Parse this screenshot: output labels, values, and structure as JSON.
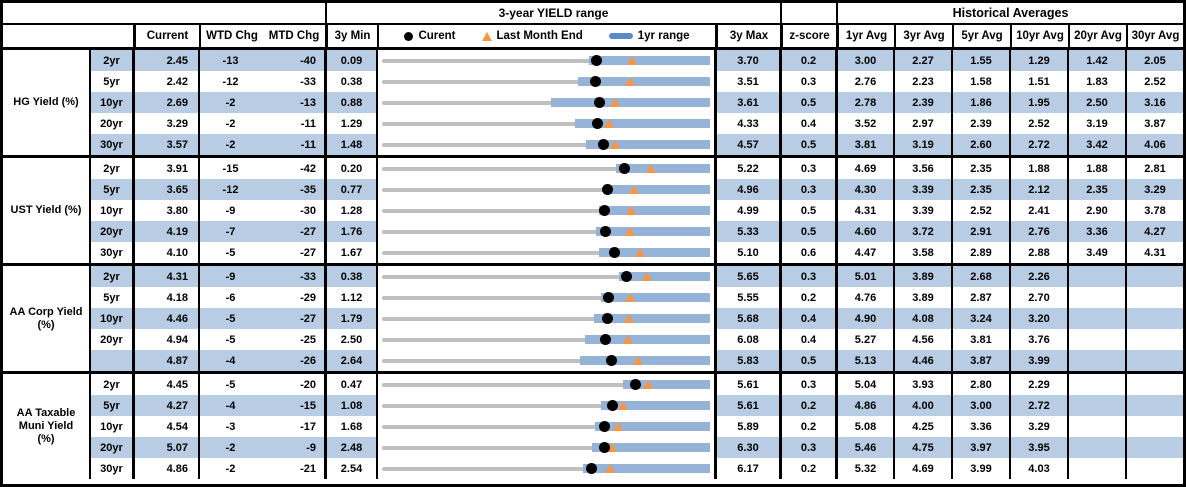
{
  "header": {
    "chart_group_title": "3-year YIELD range",
    "historical_group_title": "Historical Averages",
    "col_current": "Current",
    "col_wtd_chg": "WTD Chg",
    "col_mtd_chg": "MTD Chg",
    "col_3y_min": "3y Min",
    "col_3y_max": "3y Max",
    "col_zscore": "z-score",
    "avg_cols": [
      "1yr Avg",
      "3yr Avg",
      "5yr Avg",
      "10yr Avg",
      "20yr Avg",
      "30yr Avg"
    ],
    "legend": {
      "current": "Curent",
      "last_month_end": "Last Month End",
      "range": "1yr range"
    }
  },
  "colors": {
    "row_shade": "#B8CCE4",
    "range_bar_blue": "#95B3D7",
    "legend_swatch_blue": "#5B8AC6",
    "track_gray": "#BFBFBF",
    "marker_orange": "#F79646",
    "current_dot": "#000000",
    "border": "#000000"
  },
  "chart_data": {
    "type": "table",
    "subtype": "range-bullet-rows",
    "title": "3-year YIELD range",
    "notes": "Each row: gray track spans 3y Min..3y Max; blue bar = 1yr range (estimated low, high = 3y max); black dot = current yield; orange triangle = last month end (current - MTD chg in bps).",
    "value_columns": [
      "Current",
      "WTD Chg",
      "MTD Chg",
      "3y Min",
      "3y Max",
      "z-score",
      "1yr Avg",
      "3yr Avg",
      "5yr Avg",
      "10yr Avg",
      "20yr Avg",
      "30yr Avg"
    ],
    "sections": [
      {
        "label": "HG Yield (%)",
        "label_lines": [
          "HG Yield (%)"
        ],
        "rows": [
          {
            "tenor": "2yr",
            "current": 2.45,
            "wtd": -13,
            "mtd": -40,
            "min": 0.09,
            "max": 3.7,
            "z": 0.2,
            "bar_lo": 2.37,
            "bar_hi": 3.7,
            "avgs": [
              3.0,
              2.27,
              1.55,
              1.29,
              1.42,
              2.05
            ]
          },
          {
            "tenor": "5yr",
            "current": 2.42,
            "wtd": -12,
            "mtd": -33,
            "min": 0.38,
            "max": 3.51,
            "z": 0.3,
            "bar_lo": 2.25,
            "bar_hi": 3.51,
            "avgs": [
              2.76,
              2.23,
              1.58,
              1.51,
              1.83,
              2.52
            ]
          },
          {
            "tenor": "10yr",
            "current": 2.69,
            "wtd": -2,
            "mtd": -13,
            "min": 0.88,
            "max": 3.61,
            "z": 0.5,
            "bar_lo": 2.29,
            "bar_hi": 3.61,
            "avgs": [
              2.78,
              2.39,
              1.86,
              1.95,
              2.5,
              3.16
            ]
          },
          {
            "tenor": "20yr",
            "current": 3.29,
            "wtd": -2,
            "mtd": -11,
            "min": 1.29,
            "max": 4.33,
            "z": 0.4,
            "bar_lo": 3.08,
            "bar_hi": 4.33,
            "avgs": [
              3.52,
              2.97,
              2.39,
              2.52,
              3.19,
              3.87
            ]
          },
          {
            "tenor": "30yr",
            "current": 3.57,
            "wtd": -2,
            "mtd": -11,
            "min": 1.48,
            "max": 4.57,
            "z": 0.5,
            "bar_lo": 3.4,
            "bar_hi": 4.57,
            "avgs": [
              3.81,
              3.19,
              2.6,
              2.72,
              3.42,
              4.06
            ]
          }
        ]
      },
      {
        "label": "UST Yield (%)",
        "label_lines": [
          "UST Yield (%)"
        ],
        "rows": [
          {
            "tenor": "2yr",
            "current": 3.91,
            "wtd": -15,
            "mtd": -42,
            "min": 0.2,
            "max": 5.22,
            "z": 0.3,
            "bar_lo": 3.78,
            "bar_hi": 5.22,
            "avgs": [
              4.69,
              3.56,
              2.35,
              1.88,
              1.88,
              2.81
            ]
          },
          {
            "tenor": "5yr",
            "current": 3.65,
            "wtd": -12,
            "mtd": -35,
            "min": 0.77,
            "max": 4.96,
            "z": 0.3,
            "bar_lo": 3.6,
            "bar_hi": 4.96,
            "avgs": [
              4.3,
              3.39,
              2.35,
              2.12,
              2.35,
              3.29
            ]
          },
          {
            "tenor": "10yr",
            "current": 3.8,
            "wtd": -9,
            "mtd": -30,
            "min": 1.28,
            "max": 4.99,
            "z": 0.5,
            "bar_lo": 3.74,
            "bar_hi": 4.99,
            "avgs": [
              4.31,
              3.39,
              2.52,
              2.41,
              2.9,
              3.78
            ]
          },
          {
            "tenor": "20yr",
            "current": 4.19,
            "wtd": -7,
            "mtd": -27,
            "min": 1.76,
            "max": 5.33,
            "z": 0.5,
            "bar_lo": 4.09,
            "bar_hi": 5.33,
            "avgs": [
              4.6,
              3.72,
              2.91,
              2.76,
              3.36,
              4.27
            ]
          },
          {
            "tenor": "30yr",
            "current": 4.1,
            "wtd": -5,
            "mtd": -27,
            "min": 1.67,
            "max": 5.1,
            "z": 0.6,
            "bar_lo": 3.94,
            "bar_hi": 5.1,
            "avgs": [
              4.47,
              3.58,
              2.89,
              2.88,
              3.49,
              4.31
            ]
          }
        ]
      },
      {
        "label": "AA Corp Yield (%)",
        "label_lines": [
          "AA Corp Yield",
          "(%)"
        ],
        "rows": [
          {
            "tenor": "2yr",
            "current": 4.31,
            "wtd": -9,
            "mtd": -33,
            "min": 0.38,
            "max": 5.65,
            "z": 0.3,
            "bar_lo": 4.19,
            "bar_hi": 5.65,
            "avgs": [
              5.01,
              3.89,
              2.68,
              2.26,
              null,
              null
            ]
          },
          {
            "tenor": "5yr",
            "current": 4.18,
            "wtd": -6,
            "mtd": -29,
            "min": 1.12,
            "max": 5.55,
            "z": 0.2,
            "bar_lo": 4.08,
            "bar_hi": 5.55,
            "avgs": [
              4.76,
              3.89,
              2.87,
              2.7,
              null,
              null
            ]
          },
          {
            "tenor": "10yr",
            "current": 4.46,
            "wtd": -5,
            "mtd": -27,
            "min": 1.79,
            "max": 5.68,
            "z": 0.4,
            "bar_lo": 4.31,
            "bar_hi": 5.68,
            "avgs": [
              4.9,
              4.08,
              3.24,
              3.2,
              null,
              null
            ]
          },
          {
            "tenor": "20yr",
            "current": 4.94,
            "wtd": -5,
            "mtd": -25,
            "min": 2.5,
            "max": 6.08,
            "z": 0.4,
            "bar_lo": 4.72,
            "bar_hi": 6.08,
            "avgs": [
              5.27,
              4.56,
              3.81,
              3.76,
              null,
              null
            ]
          },
          {
            "tenor": "",
            "current": 4.87,
            "wtd": -4,
            "mtd": -26,
            "min": 2.64,
            "max": 5.83,
            "z": 0.5,
            "bar_lo": 4.57,
            "bar_hi": 5.83,
            "avgs": [
              5.13,
              4.46,
              3.87,
              3.99,
              null,
              null
            ]
          }
        ]
      },
      {
        "label": "AA Taxable Muni Yield (%)",
        "label_lines": [
          "AA Taxable",
          "Muni Yield",
          "(%)"
        ],
        "rows": [
          {
            "tenor": "2yr",
            "current": 4.45,
            "wtd": -5,
            "mtd": -20,
            "min": 0.47,
            "max": 5.61,
            "z": 0.3,
            "bar_lo": 4.25,
            "bar_hi": 5.61,
            "avgs": [
              5.04,
              3.93,
              2.8,
              2.29,
              null,
              null
            ]
          },
          {
            "tenor": "5yr",
            "current": 4.27,
            "wtd": -4,
            "mtd": -15,
            "min": 1.08,
            "max": 5.61,
            "z": 0.2,
            "bar_lo": 4.11,
            "bar_hi": 5.61,
            "avgs": [
              4.86,
              4.0,
              3.0,
              2.72,
              null,
              null
            ]
          },
          {
            "tenor": "10yr",
            "current": 4.54,
            "wtd": -3,
            "mtd": -17,
            "min": 1.68,
            "max": 5.89,
            "z": 0.2,
            "bar_lo": 4.41,
            "bar_hi": 5.89,
            "avgs": [
              5.08,
              4.25,
              3.36,
              3.29,
              null,
              null
            ]
          },
          {
            "tenor": "20yr",
            "current": 5.07,
            "wtd": -2,
            "mtd": -9,
            "min": 2.48,
            "max": 6.3,
            "z": 0.3,
            "bar_lo": 4.93,
            "bar_hi": 6.3,
            "avgs": [
              5.46,
              4.75,
              3.97,
              3.95,
              null,
              null
            ]
          },
          {
            "tenor": "30yr",
            "current": 4.86,
            "wtd": -2,
            "mtd": -21,
            "min": 2.54,
            "max": 6.17,
            "z": 0.2,
            "bar_lo": 4.77,
            "bar_hi": 6.17,
            "avgs": [
              5.32,
              4.69,
              3.99,
              4.03,
              null,
              null
            ]
          }
        ]
      }
    ]
  }
}
